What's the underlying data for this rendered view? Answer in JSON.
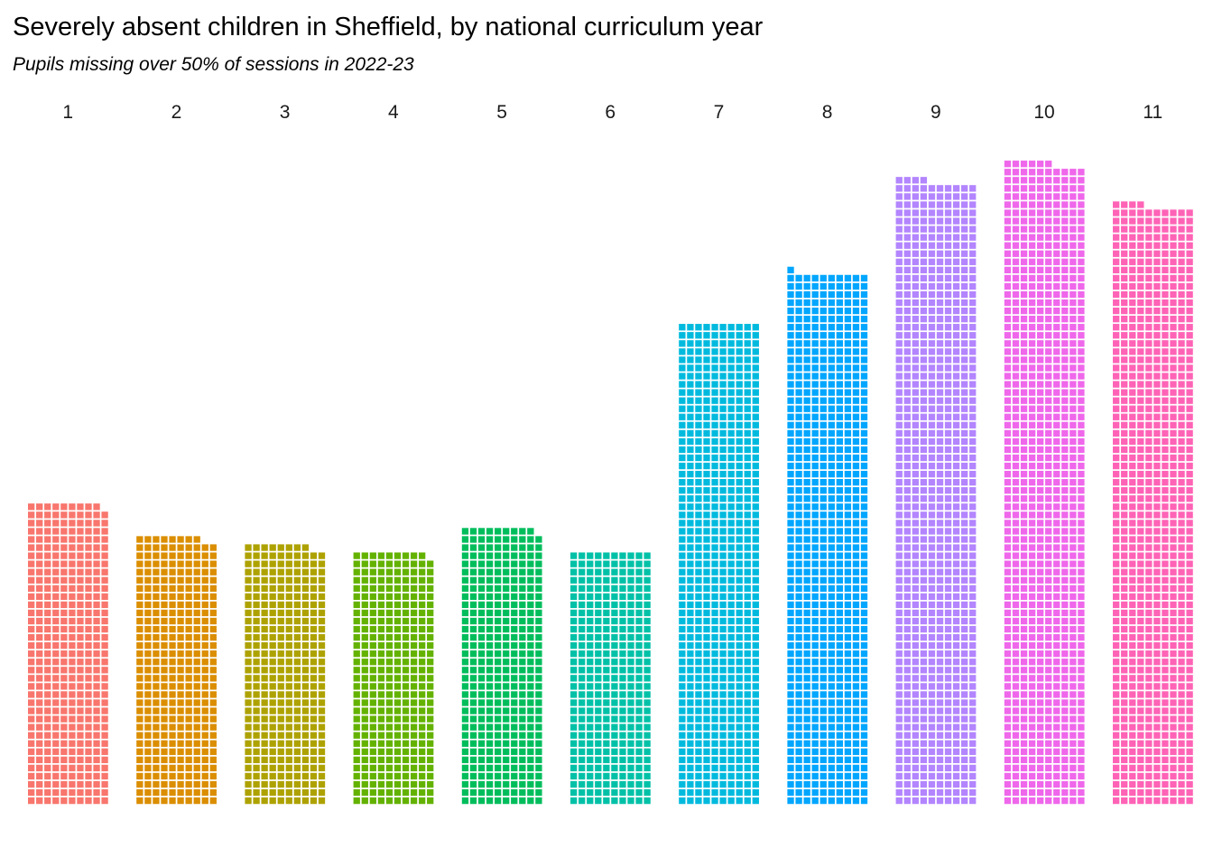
{
  "chart_data": {
    "type": "waffle",
    "title": "Severely absent children in Sheffield, by national curriculum year",
    "subtitle": "Pupils missing over 50% of sessions in 2022-23",
    "unit_per_square": 1,
    "columns_per_facet": 10,
    "categories": [
      "1",
      "2",
      "3",
      "4",
      "5",
      "6",
      "7",
      "8",
      "9",
      "10",
      "11"
    ],
    "values": [
      369,
      328,
      318,
      309,
      339,
      310,
      590,
      651,
      764,
      786,
      734
    ],
    "colors": [
      "#F8766D",
      "#DB8E00",
      "#AEA200",
      "#64B200",
      "#00BD5C",
      "#00C1A7",
      "#00BADE",
      "#00A6FF",
      "#B385FF",
      "#EF67EB",
      "#FF63B6"
    ]
  }
}
